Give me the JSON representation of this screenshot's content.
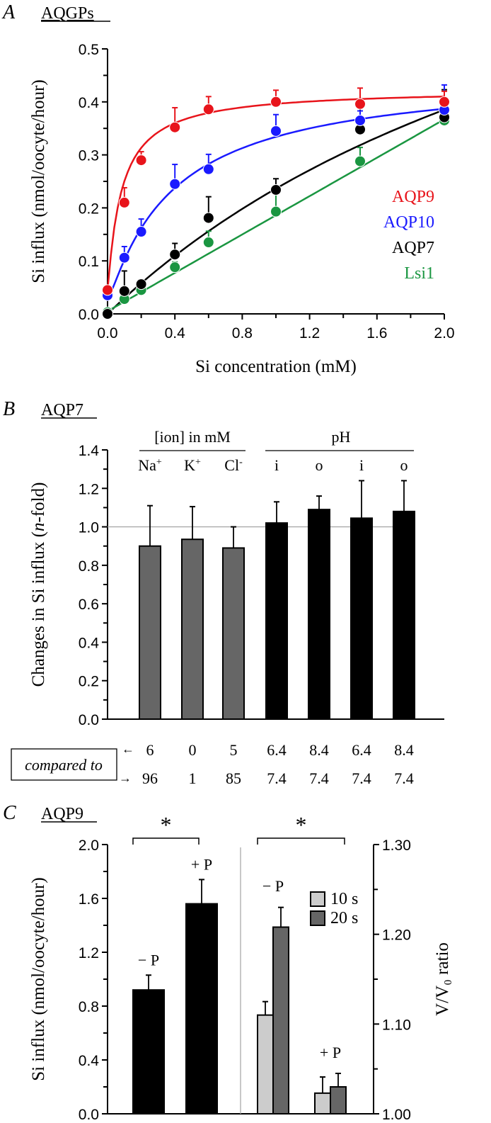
{
  "chart_data": [
    {
      "panel": "A",
      "type": "scatter",
      "title": "AQGPs",
      "xlabel": "Si concentration (mM)",
      "ylabel": "Si influx (nmol/oocyte/hour)",
      "xlim": [
        0,
        2.0
      ],
      "ylim": [
        0,
        0.5
      ],
      "xticks": [
        "0.0",
        "0.4",
        "0.8",
        "1.2",
        "1.6",
        "2.0"
      ],
      "yticks": [
        "0.0",
        "0.1",
        "0.2",
        "0.3",
        "0.4",
        "0.5"
      ],
      "legend_position": "right",
      "series": [
        {
          "name": "AQP9",
          "color": "#e8141b",
          "x": [
            0,
            0.1,
            0.2,
            0.4,
            0.6,
            1.0,
            1.5,
            2.0
          ],
          "y": [
            0.045,
            0.21,
            0.29,
            0.352,
            0.386,
            0.4,
            0.396,
            0.4
          ],
          "err": [
            0.005,
            0.028,
            0.016,
            0.037,
            0.024,
            0.022,
            0.03,
            0.02
          ],
          "fit": {
            "vmax": 0.425,
            "km": 0.075
          }
        },
        {
          "name": "AQP10",
          "color": "#1a1aff",
          "x": [
            0,
            0.1,
            0.2,
            0.4,
            0.6,
            1.0,
            1.5,
            2.0
          ],
          "y": [
            0.035,
            0.106,
            0.155,
            0.245,
            0.273,
            0.345,
            0.365,
            0.385
          ],
          "err": [
            0.005,
            0.021,
            0.024,
            0.037,
            0.028,
            0.031,
            0.018,
            0.047
          ],
          "fit": {
            "vmax": 0.46,
            "km": 0.38
          }
        },
        {
          "name": "AQP7",
          "color": "#000000",
          "x": [
            0,
            0.1,
            0.2,
            0.4,
            0.6,
            1.0,
            1.5,
            2.0
          ],
          "y": [
            0.0,
            0.043,
            0.056,
            0.112,
            0.181,
            0.234,
            0.348,
            0.371
          ],
          "err": [
            0.003,
            0.038,
            0.008,
            0.021,
            0.04,
            0.021,
            0.043,
            0.052
          ],
          "fit": {
            "vmax": 1.04,
            "km": 3.4
          }
        },
        {
          "name": "Lsi1",
          "color": "#1a9641",
          "x": [
            0,
            0.1,
            0.2,
            0.4,
            0.6,
            1.0,
            1.5,
            2.0
          ],
          "y": [
            0.003,
            0.028,
            0.045,
            0.088,
            0.135,
            0.193,
            0.288,
            0.365
          ],
          "err": [
            0.003,
            0.005,
            0.008,
            0.01,
            0.021,
            0.033,
            0.026,
            0.027
          ],
          "fit": {
            "linear": 0.181,
            "offset": 0.005
          }
        }
      ]
    },
    {
      "panel": "B",
      "type": "bar",
      "title": "AQP7",
      "ylabel_prefix": "Changes in Si influx (",
      "ylabel_italic": "n",
      "ylabel_suffix": "-fold)",
      "ylim": [
        0,
        1.4
      ],
      "yticks": [
        "0.0",
        "0.2",
        "0.4",
        "0.6",
        "0.8",
        "1.0",
        "1.2",
        "1.4"
      ],
      "reference_line": 1.0,
      "group_labels": [
        "[ion] in mM",
        "pH"
      ],
      "categories": [
        {
          "label": "Na",
          "sup": "+",
          "value": 0.9,
          "err": 0.21,
          "color": "#666666",
          "from": "6",
          "to": "96"
        },
        {
          "label": "K",
          "sup": "+",
          "value": 0.935,
          "err": 0.17,
          "color": "#666666",
          "from": "0",
          "to": "1"
        },
        {
          "label": "Cl",
          "sup": "-",
          "value": 0.89,
          "err": 0.11,
          "color": "#666666",
          "from": "5",
          "to": "85"
        },
        {
          "label": "i",
          "sup": "",
          "value": 1.02,
          "err": 0.11,
          "color": "#000000",
          "from": "6.4",
          "to": "7.4"
        },
        {
          "label": "o",
          "sup": "",
          "value": 1.09,
          "err": 0.07,
          "color": "#000000",
          "from": "8.4",
          "to": "7.4"
        },
        {
          "label": "i",
          "sup": "",
          "value": 1.045,
          "err": 0.195,
          "color": "#000000",
          "from": "6.4",
          "to": "7.4"
        },
        {
          "label": "o",
          "sup": "",
          "value": 1.08,
          "err": 0.16,
          "color": "#000000",
          "from": "8.4",
          "to": "7.4"
        }
      ],
      "compared_to_label": "compared to",
      "arrow_from": "←",
      "arrow_to": "→"
    },
    {
      "panel": "C",
      "type": "bar",
      "title": "AQP9",
      "ylabel_left": "Si influx (nmol/oocyte/hour)",
      "ylabel_right": "V/V₀ ratio",
      "ylim_left": [
        0,
        2.0
      ],
      "ylim_right": [
        1.0,
        1.3
      ],
      "yticks_left": [
        "0.0",
        "0.4",
        "0.8",
        "1.2",
        "1.6",
        "2.0"
      ],
      "yticks_right": [
        "1.00",
        "1.10",
        "1.20",
        "1.30"
      ],
      "significance": [
        "*",
        "*"
      ],
      "left_bars": [
        {
          "label": "− P",
          "value": 0.92,
          "err": 0.11
        },
        {
          "label": "+ P",
          "value": 1.56,
          "err": 0.18
        }
      ],
      "right_groups": [
        {
          "label": "− P",
          "values": [
            1.11,
            1.208
          ],
          "err": [
            0.015,
            0.022
          ]
        },
        {
          "label": "+ P",
          "values": [
            1.023,
            1.03
          ],
          "err": [
            0.018,
            0.015
          ]
        }
      ],
      "legend": [
        {
          "name": "10 s",
          "color": "#cccccc"
        },
        {
          "name": "20 s",
          "color": "#666666"
        }
      ],
      "legend_position": "top-right"
    }
  ]
}
